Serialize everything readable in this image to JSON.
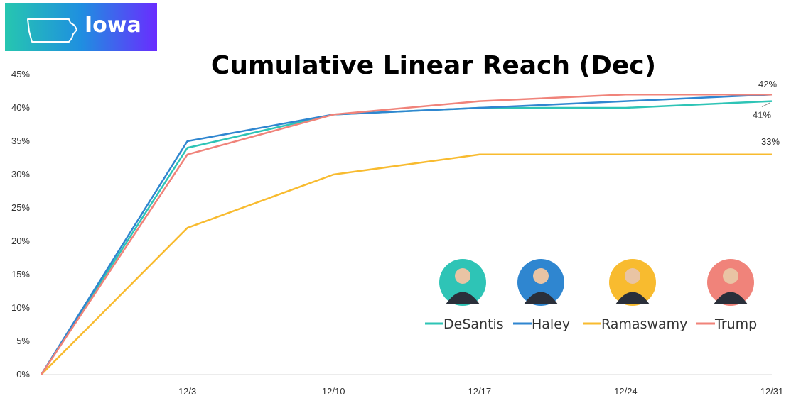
{
  "badge": {
    "label": "Iowa",
    "icon": "iowa-state-icon"
  },
  "chart_data": {
    "type": "line",
    "title": "Cumulative Linear Reach (Dec)",
    "xlabel": "",
    "ylabel": "",
    "categories": [
      "12/3",
      "12/10",
      "12/17",
      "12/24",
      "12/31"
    ],
    "x": [
      "start",
      "12/3",
      "12/10",
      "12/17",
      "12/24",
      "12/31"
    ],
    "ylim": [
      0,
      45
    ],
    "y_tick_labels": [
      "0%",
      "5%",
      "10%",
      "15%",
      "20%",
      "25%",
      "30%",
      "35%",
      "40%",
      "45%"
    ],
    "grid": false,
    "legend": "bottom-right",
    "series": [
      {
        "name": "DeSantis",
        "color": "#2ec4b6",
        "values": [
          0,
          34,
          39,
          40,
          40,
          41
        ]
      },
      {
        "name": "Haley",
        "color": "#2f86d0",
        "values": [
          0,
          35,
          39,
          40,
          41,
          42
        ]
      },
      {
        "name": "Ramaswamy",
        "color": "#f8bb2f",
        "values": [
          0,
          22,
          30,
          33,
          33,
          33
        ]
      },
      {
        "name": "Trump",
        "color": "#f0837a",
        "values": [
          0,
          33,
          39,
          41,
          42,
          42
        ]
      }
    ],
    "annotations": [
      {
        "text": "42%",
        "series": "Trump",
        "x": "12/31",
        "y": 42
      },
      {
        "text": "41%",
        "series": "DeSantis",
        "x": "12/31",
        "y": 41
      },
      {
        "text": "33%",
        "series": "Ramaswamy",
        "x": "12/31",
        "y": 33
      }
    ]
  }
}
